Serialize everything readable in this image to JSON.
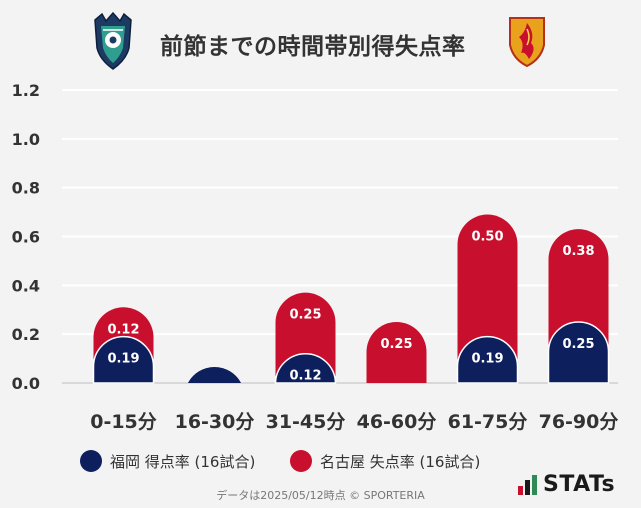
{
  "header": {
    "title": "前節までの時間帯別得失点率",
    "left_icon": "avispa-fukuoka-crest-icon",
    "right_icon": "nagoya-grampus-crest-icon"
  },
  "colors": {
    "fukuoka": "#0d1f5c",
    "nagoya": "#c8102e",
    "background": "#f3f3f3",
    "grid": "#ffffff"
  },
  "chart_data": {
    "type": "bar",
    "stacked": true,
    "categories": [
      "0-15分",
      "16-30分",
      "31-45分",
      "46-60分",
      "61-75分",
      "76-90分"
    ],
    "series": [
      {
        "name": "福岡 得点率 (16試合)",
        "values": [
          0.19,
          0.0,
          0.12,
          0.0,
          0.19,
          0.25
        ],
        "labels": [
          "0.19",
          "",
          "0.12",
          "",
          "0.19",
          "0.25"
        ]
      },
      {
        "name": "名古屋 失点率 (16試合)",
        "values": [
          0.12,
          0.0,
          0.25,
          0.25,
          0.5,
          0.38
        ],
        "labels": [
          "0.12",
          "",
          "0.25",
          "0.25",
          "0.50",
          "0.38"
        ]
      }
    ],
    "yticks": [
      "0.0",
      "0.2",
      "0.4",
      "0.6",
      "0.8",
      "1.0",
      "1.2"
    ],
    "ylim": [
      0,
      1.2
    ],
    "grid": true,
    "legend_position": "bottom-left"
  },
  "legend": [
    {
      "label": "福岡 得点率 (16試合)"
    },
    {
      "label": "名古屋 失点率 (16試合)"
    }
  ],
  "footer": {
    "text": "データは2025/05/12時点 © SPORTERIA"
  },
  "brand": {
    "text": "STATs",
    "icon": "stats-bars-icon"
  }
}
